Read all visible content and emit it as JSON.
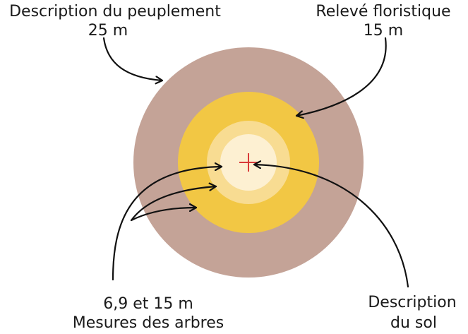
{
  "labels": {
    "stand": {
      "title": "Description du peuplement",
      "radius": "25 m"
    },
    "flora": {
      "title": "Relevé floristique",
      "radius": "15 m"
    },
    "trees": {
      "radii": "6,9 et 15 m",
      "title": "Mesures des arbres"
    },
    "soil": {
      "line1": "Description",
      "line2": "du sol"
    }
  },
  "rings": [
    {
      "radius_m": 25,
      "color": "#c4a397"
    },
    {
      "radius_m": 15,
      "color": "#f2c744"
    },
    {
      "radius_m": 9,
      "color": "#f8dc92"
    },
    {
      "radius_m": 6,
      "color": "#fdf0d2"
    }
  ],
  "center_marker_color": "#d93a3a",
  "arrow_color": "#111111"
}
